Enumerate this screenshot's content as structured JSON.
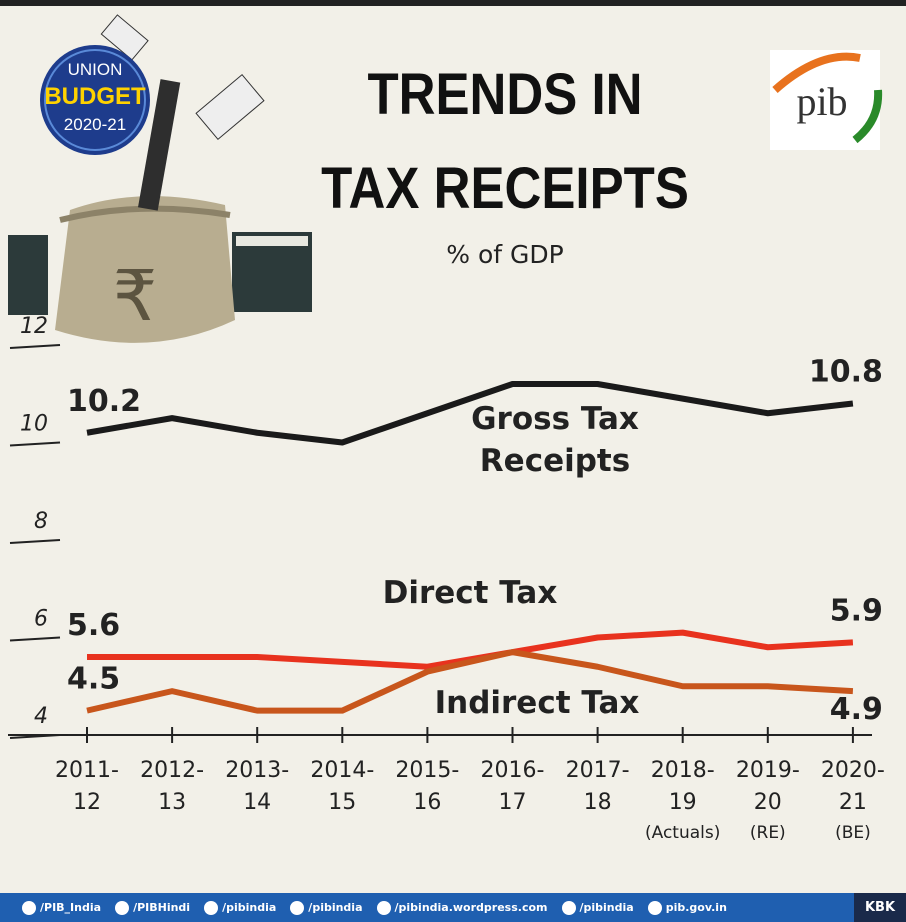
{
  "chart_data": {
    "type": "line",
    "title": "TRENDS IN TAX RECEIPTS",
    "subtitle": "% of GDP",
    "badge": [
      "UNION",
      "BUDGET",
      "2020-21"
    ],
    "logo": "pib",
    "categories": [
      [
        "2011-",
        "12"
      ],
      [
        "2012-",
        "13"
      ],
      [
        "2013-",
        "14"
      ],
      [
        "2014-",
        "15"
      ],
      [
        "2015-",
        "16"
      ],
      [
        "2016-",
        "17"
      ],
      [
        "2017-",
        "18"
      ],
      [
        "2018-",
        "19",
        "(Actuals)"
      ],
      [
        "2019-",
        "20",
        "(RE)"
      ],
      [
        "2020-",
        "21",
        "(BE)"
      ]
    ],
    "series": [
      {
        "name": "Gross Tax Receipts",
        "color": "#1a1a1a",
        "values": [
          10.2,
          10.5,
          10.2,
          10.0,
          10.6,
          11.2,
          11.2,
          10.9,
          10.6,
          10.8
        ],
        "value_labels": [
          "10.2",
          null,
          null,
          null,
          null,
          null,
          null,
          null,
          null,
          "10.8"
        ]
      },
      {
        "name": "Direct Tax",
        "color": "#e8321e",
        "values": [
          5.6,
          5.6,
          5.6,
          5.5,
          5.4,
          5.7,
          6.0,
          6.1,
          5.8,
          5.9
        ],
        "value_labels": [
          "5.6",
          null,
          null,
          null,
          null,
          null,
          null,
          null,
          null,
          "5.9"
        ]
      },
      {
        "name": "Indirect Tax",
        "color": "#c8561c",
        "values": [
          4.5,
          4.9,
          4.5,
          4.5,
          5.3,
          5.7,
          5.4,
          5.0,
          5.0,
          4.9
        ],
        "value_labels": [
          "4.5",
          null,
          null,
          null,
          null,
          null,
          null,
          null,
          null,
          "4.9"
        ]
      }
    ],
    "ylim": [
      4,
      12
    ],
    "yticks": [
      4,
      6,
      8,
      10,
      12
    ]
  },
  "footer": {
    "items": [
      "/PIB_India",
      "/PIBHindi",
      "/pibindia",
      "/pibindia",
      "/pibindia.wordpress.com",
      "/pibindia",
      "pib.gov.in"
    ],
    "tag": "KBK"
  }
}
